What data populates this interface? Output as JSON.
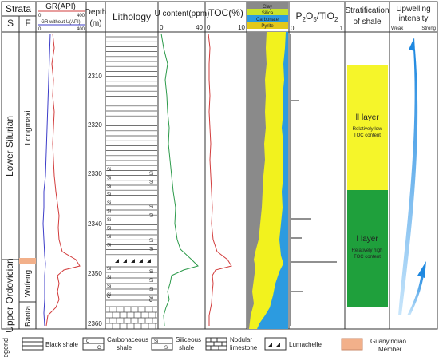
{
  "headers": {
    "strata": "Strata",
    "s": "S",
    "f": "F",
    "gr": "GR(API)",
    "gr_min": "0",
    "gr_max": "400",
    "gr_wo": "GR without U(API)",
    "gr_wo_min": "0",
    "gr_wo_max": "400",
    "depth1": "Depth",
    "depth2": "(m)",
    "lithology": "Lithology",
    "u": "U content(ppm)",
    "u_min": "0",
    "u_max": "40",
    "toc": "TOC(%)",
    "toc_min": "0",
    "toc_max": "10",
    "p2o5": "P",
    "p2o5_sub1": "2",
    "p2o5_mid": "O",
    "p2o5_sub2": "5",
    "p2o5_slash": "/TiO",
    "p2o5_sub3": "2",
    "p_min": "0",
    "p_max": "1",
    "strat1": "Stratification",
    "strat2": "of shale",
    "up1": "Upwelling",
    "up2": "intensity",
    "weak": "Weak",
    "strong": "Strong"
  },
  "mineral_legend": [
    "Clay",
    "Silica",
    "Carbonate",
    "Pyrite"
  ],
  "strata": {
    "systems": [
      "Lower Silurian",
      "Upper Ordovician"
    ],
    "formations": [
      "Longmaxi",
      "Wufeng",
      "Baota"
    ]
  },
  "depth_ticks": [
    "2310",
    "2320",
    "2330",
    "2340",
    "2350",
    "2360"
  ],
  "layers": {
    "layer2_title": "Ⅱ layer",
    "layer2_desc1": "Relatively low",
    "layer2_desc2": "TOC content",
    "layer1_title": "Ⅰ layer",
    "layer1_desc1": "Relatively high",
    "layer1_desc2": "TOC content"
  },
  "legend": {
    "title": "Legend",
    "black_shale": "Black shale",
    "carb1": "Carbonaceous",
    "carb2": "shale",
    "sil1": "Siliceous",
    "sil2": "shale",
    "nod1": "Nodular",
    "nod2": "limestone",
    "luma": "Lumachelle",
    "guan1": "Guanyinqiao",
    "guan2": "Member"
  },
  "colors": {
    "clay": "#8a8a8a",
    "silica": "#f2f21e",
    "carbonate": "#2c9be0",
    "pyrite": "#e3d21a",
    "layer2": "#f5f52a",
    "layer1": "#1fa03c",
    "guanyinqiao": "#f2b08a",
    "gr": "#d23c3c",
    "gr_wo": "#3c3cc8",
    "u": "#2c9a4a",
    "toc": "#d23c3c"
  }
}
